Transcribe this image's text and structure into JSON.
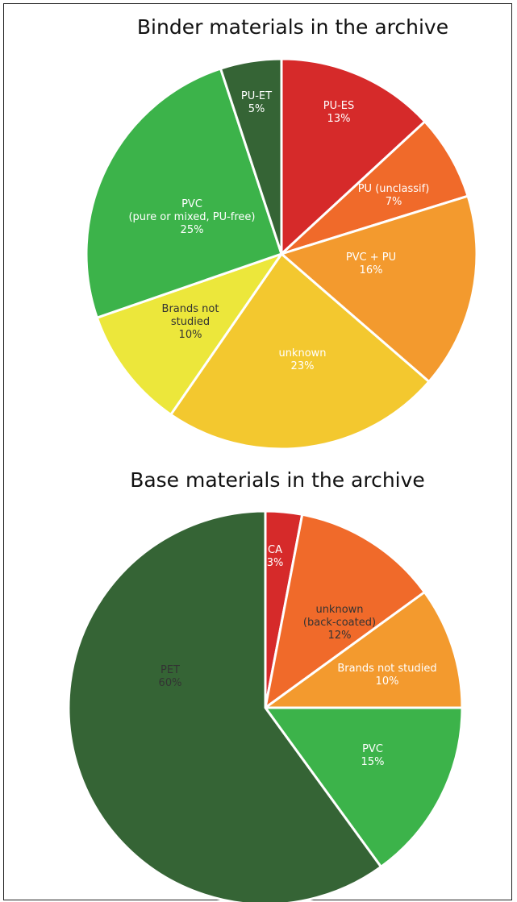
{
  "chart_data": [
    {
      "type": "pie",
      "title": "Binder materials in the archive",
      "slices": [
        {
          "lines": [
            "PU-ES",
            "13%"
          ],
          "value": 13,
          "color": "#d62a2a",
          "label_color": "#ffffff"
        },
        {
          "lines": [
            "PU (unclassif)",
            "7%"
          ],
          "value": 7,
          "color": "#f06a2a",
          "label_color": "#ffffff"
        },
        {
          "lines": [
            "PVC + PU",
            "16%"
          ],
          "value": 16,
          "color": "#f39a2e",
          "label_color": "#ffffff"
        },
        {
          "lines": [
            "unknown",
            "23%"
          ],
          "value": 23,
          "color": "#f3c82f",
          "label_color": "#ffffff"
        },
        {
          "lines": [
            "Brands not",
            "studied",
            "10%"
          ],
          "value": 10,
          "color": "#ece73b",
          "label_color": "#333333"
        },
        {
          "lines": [
            "PVC",
            "(pure or mixed, PU-free)",
            "25%"
          ],
          "value": 25,
          "color": "#3cb34a",
          "label_color": "#ffffff"
        },
        {
          "lines": [
            "PU-ET",
            "5%"
          ],
          "value": 5,
          "color": "#356435",
          "label_color": "#ffffff"
        }
      ]
    },
    {
      "type": "pie",
      "title": "Base materials in the archive",
      "slices": [
        {
          "lines": [
            "CA",
            "3%"
          ],
          "value": 3,
          "color": "#d62a2a",
          "label_color": "#ffffff"
        },
        {
          "lines": [
            "unknown",
            "(back-coated)",
            "12%"
          ],
          "value": 12,
          "color": "#f06a2a",
          "label_color": "#333333"
        },
        {
          "lines": [
            "Brands not studied",
            "10%"
          ],
          "value": 10,
          "color": "#f39a2e",
          "label_color": "#ffffff"
        },
        {
          "lines": [
            "PVC",
            "15%"
          ],
          "value": 15,
          "color": "#3cb34a",
          "label_color": "#ffffff"
        },
        {
          "lines": [
            "PET",
            "60%"
          ],
          "value": 60,
          "color": "#356435",
          "label_color": "#333333"
        }
      ]
    }
  ]
}
